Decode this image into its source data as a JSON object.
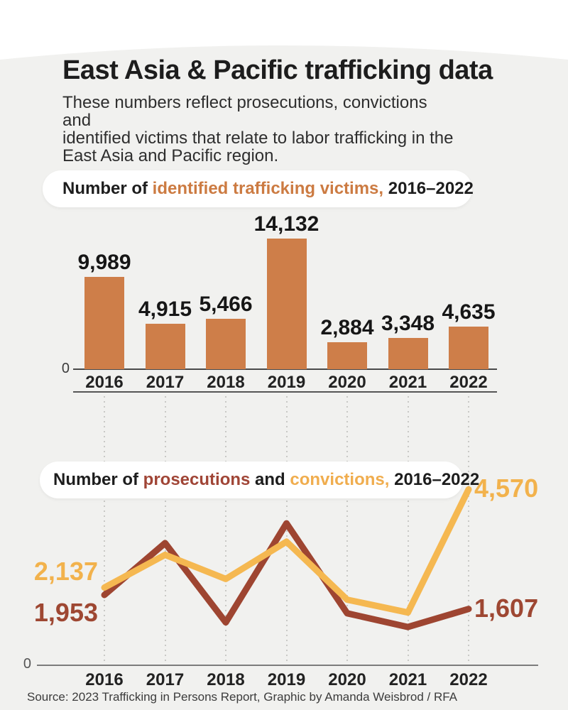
{
  "page": {
    "title": "East Asia & Pacific trafficking data",
    "subtitle": "These numbers reflect prosecutions, convictions and\nidentified victims that relate to labor trafficking in the\nEast Asia and Pacific region.",
    "source": "Source: 2023 Trafficking in Persons Report, Graphic by Amanda Weisbrod / RFA"
  },
  "colors": {
    "card_bg": "#f1f1ef",
    "page_bg": "#ffffff",
    "bar_orange": "#ce7e49",
    "orange_text": "#cc7b42",
    "prosecutions_red": "#9e4531",
    "convictions_yellow": "#f5b851",
    "dark_text": "#1d1d1d"
  },
  "headers": {
    "victims": {
      "parts": [
        {
          "text": "Number of "
        },
        {
          "text": "identified trafficking victims,"
        },
        {
          "text": " 2016–2022"
        }
      ]
    },
    "lines": {
      "parts": [
        {
          "text": "Number of "
        },
        {
          "text": "prosecutions"
        },
        {
          "text": " and "
        },
        {
          "text": "convictions,"
        },
        {
          "text": " 2016–2022"
        }
      ]
    }
  },
  "chart_data": [
    {
      "type": "bar",
      "title": "Number of identified trafficking victims, 2016–2022",
      "categories": [
        "2016",
        "2017",
        "2018",
        "2019",
        "2020",
        "2021",
        "2022"
      ],
      "values": [
        9989,
        4915,
        5466,
        14132,
        2884,
        3348,
        4635
      ],
      "value_labels": [
        "9,989",
        "4,915",
        "5,466",
        "14,132",
        "2,884",
        "3,348",
        "4,635"
      ],
      "zero_label": "0",
      "bar_color": "#ce7e49",
      "xlabel": "",
      "ylabel": "",
      "ylim": [
        0,
        15000
      ],
      "grid": false,
      "legend": "none"
    },
    {
      "type": "line",
      "title": "Number of prosecutions and convictions, 2016–2022",
      "categories": [
        "2016",
        "2017",
        "2018",
        "2019",
        "2020",
        "2021",
        "2022"
      ],
      "series": [
        {
          "name": "prosecutions",
          "color": "#9e4531",
          "values": [
            1953,
            3240,
            1275,
            3730,
            1500,
            1160,
            1607
          ],
          "first_point_label": "1,953",
          "last_point_label": "1,607"
        },
        {
          "name": "convictions",
          "color": "#f5b851",
          "values": [
            2137,
            2949,
            2351,
            3276,
            1838,
            1519,
            4570
          ],
          "first_point_label": "2,137",
          "last_point_label": "4,570"
        }
      ],
      "zero_label": "0",
      "xlabel": "",
      "ylabel": "",
      "ylim": [
        0,
        5100
      ],
      "grid": "vertical-dotted",
      "legend": "inline-colored-title"
    }
  ]
}
